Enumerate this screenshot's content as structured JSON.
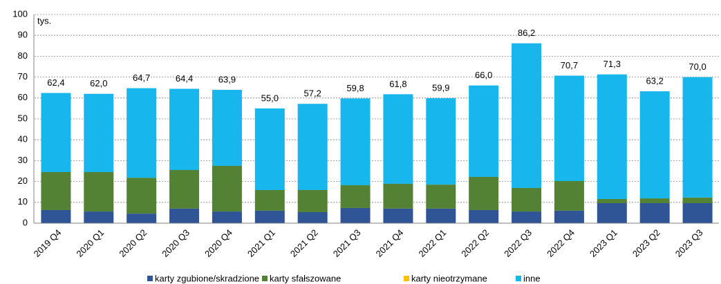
{
  "chart_data": {
    "type": "stacked_bar",
    "unit_label": "tys.",
    "categories": [
      "2019 Q4",
      "2020 Q1",
      "2020 Q2",
      "2020 Q3",
      "2020 Q4",
      "2021 Q1",
      "2021 Q2",
      "2021 Q3",
      "2021 Q4",
      "2022 Q1",
      "2022 Q2",
      "2022 Q3",
      "2022 Q4",
      "2023 Q1",
      "2023 Q2",
      "2023 Q3"
    ],
    "series": [
      {
        "name": "karty zgubione/skradzione",
        "color": "#2f5597",
        "values": [
          6.3,
          5.6,
          4.6,
          7.0,
          5.6,
          6.0,
          5.3,
          7.3,
          7.0,
          7.0,
          6.3,
          5.6,
          6.0,
          9.6,
          9.6,
          9.6
        ]
      },
      {
        "name": "karty sfałszowane",
        "color": "#548235",
        "values": [
          18.2,
          18.9,
          17.2,
          18.5,
          21.9,
          9.9,
          10.6,
          10.9,
          11.9,
          11.5,
          15.9,
          11.3,
          14.2,
          2.0,
          2.3,
          2.7
        ]
      },
      {
        "name": "karty nieotrzymane",
        "color": "#ffc000",
        "values": [
          0,
          0,
          0,
          0,
          0,
          0,
          0,
          0,
          0,
          0,
          0,
          0,
          0,
          0,
          0,
          0
        ]
      },
      {
        "name": "inne",
        "color": "#17b6ec",
        "values": [
          37.9,
          37.5,
          42.9,
          38.9,
          36.4,
          39.1,
          41.3,
          41.6,
          42.9,
          41.4,
          43.8,
          69.3,
          50.5,
          59.7,
          51.3,
          57.7
        ]
      }
    ],
    "totals": {
      "values": [
        62.4,
        62.0,
        64.7,
        64.4,
        63.9,
        55.0,
        57.2,
        59.8,
        61.8,
        59.9,
        66.0,
        86.2,
        70.7,
        71.3,
        63.2,
        70.0
      ],
      "value_labels": [
        "62,4",
        "62,0",
        "64,7",
        "64,4",
        "63,9",
        "55,0",
        "57,2",
        "59,8",
        "61,8",
        "59,9",
        "66,0",
        "86,2",
        "70,7",
        "71,3",
        "63,2",
        "70,0"
      ]
    },
    "ylim": [
      0,
      100
    ],
    "yticks": [
      0,
      10,
      20,
      30,
      40,
      50,
      60,
      70,
      80,
      90,
      100
    ],
    "grid": true,
    "legend": "bottom"
  }
}
